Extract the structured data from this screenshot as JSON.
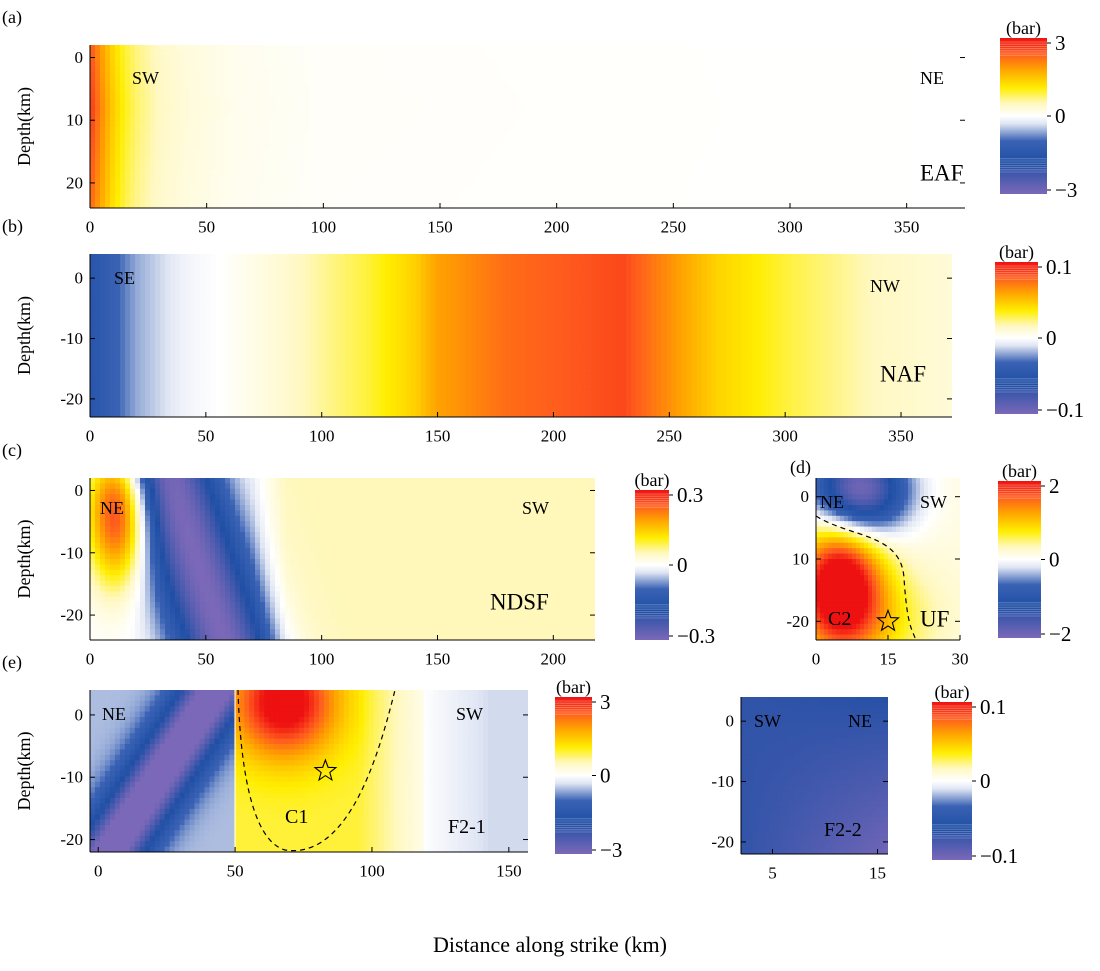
{
  "figure": {
    "xlabel": "Distance along strike (km)",
    "colorscale": [
      {
        "stop": 0.0,
        "color": "#7b68b8"
      },
      {
        "stop": 0.2,
        "color": "#1f4fa5"
      },
      {
        "stop": 0.34,
        "color": "#3a62b4"
      },
      {
        "stop": 0.45,
        "color": "#dfe5f3"
      },
      {
        "stop": 0.5,
        "color": "#ffffff"
      },
      {
        "stop": 0.58,
        "color": "#fff8c0"
      },
      {
        "stop": 0.68,
        "color": "#ffee00"
      },
      {
        "stop": 0.8,
        "color": "#ffa200"
      },
      {
        "stop": 0.9,
        "color": "#ff5a1e"
      },
      {
        "stop": 1.0,
        "color": "#ee1111"
      }
    ]
  },
  "chart_data": [
    {
      "type": "heatmap",
      "panel_label": "(a)",
      "fault": "EAF",
      "ylabel": "Depth(km)",
      "unit": "(bar)",
      "direction_left": "SW",
      "direction_right": "NE",
      "xlim": [
        0,
        375
      ],
      "ylim": [
        -24,
        2
      ],
      "xticks": [
        0,
        50,
        100,
        150,
        200,
        250,
        300,
        350
      ],
      "yticks": [
        0,
        -10,
        -20
      ],
      "ytick_labels": [
        "0",
        "10",
        "20"
      ],
      "colorbar_range": [
        -3,
        3
      ],
      "colorbar_ticks": [
        "3",
        "0",
        "-3"
      ],
      "profile_distance_km": [
        0,
        5,
        10,
        15,
        20,
        30,
        40,
        60,
        100,
        375
      ],
      "profile_value_bar": [
        2.7,
        2.0,
        1.4,
        1.0,
        0.75,
        0.45,
        0.3,
        0.15,
        0.05,
        0.0
      ],
      "annotations": []
    },
    {
      "type": "heatmap",
      "panel_label": "(b)",
      "fault": "NAF",
      "ylabel": "Depth(km)",
      "unit": "(bar)",
      "direction_left": "SE",
      "direction_right": "NW",
      "xlim": [
        0,
        372
      ],
      "ylim": [
        -23,
        4
      ],
      "xticks": [
        0,
        50,
        100,
        150,
        200,
        250,
        300,
        350
      ],
      "yticks": [
        0,
        -10,
        -20
      ],
      "ytick_labels": [
        "0",
        "-10",
        "-20"
      ],
      "colorbar_range": [
        -0.1,
        0.1
      ],
      "colorbar_ticks": [
        "0.1",
        "0",
        "-0.1"
      ],
      "profile_distance_km": [
        0,
        20,
        40,
        55,
        80,
        100,
        120,
        140,
        150,
        180,
        230,
        250,
        270,
        300,
        340,
        372
      ],
      "profile_value_bar": [
        -0.05,
        -0.02,
        -0.005,
        0.0,
        0.01,
        0.02,
        0.03,
        0.045,
        0.06,
        0.075,
        0.085,
        0.065,
        0.045,
        0.03,
        0.015,
        0.01
      ],
      "annotations": []
    },
    {
      "type": "heatmap",
      "panel_label": "(c)",
      "fault": "NDSF",
      "ylabel": "Depth(km)",
      "unit": "(bar)",
      "direction_left": "NE",
      "direction_right": "SW",
      "xlim": [
        0,
        218
      ],
      "ylim": [
        -24,
        2
      ],
      "xticks": [
        0,
        50,
        100,
        150,
        200
      ],
      "yticks": [
        0,
        -10,
        -20
      ],
      "ytick_labels": [
        "0",
        "-10",
        "-20"
      ],
      "colorbar_range": [
        -0.3,
        0.3
      ],
      "colorbar_ticks": [
        "0.3",
        "0",
        "-0.3"
      ],
      "annotations": []
    },
    {
      "type": "heatmap",
      "panel_label": "(d)",
      "fault": "UF",
      "ylabel": "",
      "unit": "(bar)",
      "direction_left": "NE",
      "direction_right": "SW",
      "xlim": [
        0,
        30
      ],
      "ylim": [
        -23,
        3
      ],
      "xticks": [
        0,
        15,
        30
      ],
      "yticks": [
        0,
        -10,
        -20
      ],
      "ytick_labels": [
        "0",
        "10",
        "-20"
      ],
      "colorbar_range": [
        -2,
        2
      ],
      "colorbar_ticks": [
        "2",
        "0",
        "-2"
      ],
      "annotations": [
        {
          "kind": "label",
          "text": "C2"
        },
        {
          "kind": "star",
          "x": 15,
          "y": -20
        }
      ]
    },
    {
      "type": "heatmap",
      "panel_label": "(e)",
      "fault": "F2-1",
      "ylabel": "Depth(km)",
      "unit": "(bar)",
      "direction_left": "NE",
      "direction_right": "SW",
      "xlim": [
        -3,
        157
      ],
      "ylim": [
        -22,
        4
      ],
      "xticks": [
        0,
        50,
        100,
        150
      ],
      "yticks": [
        0,
        -10,
        -20
      ],
      "ytick_labels": [
        "0",
        "-10",
        "-20"
      ],
      "colorbar_range": [
        -3,
        3
      ],
      "colorbar_ticks": [
        "3",
        "0",
        "-3"
      ],
      "annotations": [
        {
          "kind": "label",
          "text": "C1"
        },
        {
          "kind": "star",
          "x": 83,
          "y": -9
        }
      ]
    },
    {
      "type": "heatmap",
      "panel_label": "",
      "fault": "F2-2",
      "ylabel": "",
      "unit": "(bar)",
      "direction_left": "SW",
      "direction_right": "NE",
      "xlim": [
        2,
        16
      ],
      "ylim": [
        -22,
        4
      ],
      "xticks": [
        5,
        15
      ],
      "yticks": [
        0,
        -10,
        -20
      ],
      "ytick_labels": [
        "0",
        "-10",
        "-20"
      ],
      "colorbar_range": [
        -0.1,
        0.1
      ],
      "colorbar_ticks": [
        "0.1",
        "0",
        "-0.1"
      ],
      "annotations": []
    }
  ]
}
